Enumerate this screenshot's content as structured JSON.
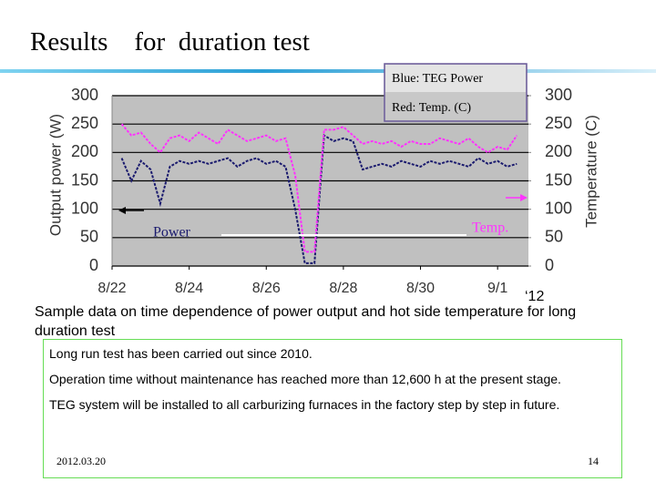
{
  "slide": {
    "title": "Results　for  duration test",
    "caption": "Sample data on time dependence of power output and hot side temperature for long duration test",
    "notes": [
      "Long run test has been carried out since 2010.",
      "Operation time without maintenance has  reached more than 12,600 h at the present stage.",
      "TEG system will be installed to all carburizing furnaces in the factory step by step in future."
    ],
    "date": "2012.03.20",
    "page": "14"
  },
  "chart_data": {
    "type": "line",
    "ylabel": "Output power (W)",
    "y2label": "Temperature (C)",
    "xlabel": "‘12",
    "legend_box": [
      "Blue: TEG Power",
      "Red: Temp. (C)"
    ],
    "xlim": [
      0,
      10.8
    ],
    "xticks": [
      {
        "value": 0,
        "label": "8/22"
      },
      {
        "value": 2,
        "label": "8/24"
      },
      {
        "value": 4,
        "label": "8/26"
      },
      {
        "value": 6,
        "label": "8/28"
      },
      {
        "value": 8,
        "label": "8/30"
      },
      {
        "value": 10,
        "label": "9/1"
      }
    ],
    "ylim": [
      0,
      300
    ],
    "yticks": [
      0,
      50,
      100,
      150,
      200,
      250,
      300
    ],
    "y2lim": [
      0,
      300
    ],
    "y2ticks": [
      0,
      50,
      100,
      150,
      200,
      250,
      300
    ],
    "grid": true,
    "background": "#c0c0c0",
    "x": [
      0.25,
      0.5,
      0.75,
      1,
      1.25,
      1.5,
      1.75,
      2,
      2.25,
      2.5,
      2.75,
      3,
      3.25,
      3.5,
      3.75,
      4,
      4.25,
      4.5,
      4.75,
      5,
      5.25,
      5.5,
      5.75,
      6,
      6.25,
      6.5,
      6.75,
      7,
      7.25,
      7.5,
      7.75,
      8,
      8.25,
      8.5,
      8.75,
      9,
      9.25,
      9.5,
      9.75,
      10,
      10.25,
      10.5
    ],
    "series": [
      {
        "name": "Power",
        "color": "#1a1a6e",
        "values": [
          190,
          150,
          185,
          170,
          110,
          175,
          185,
          180,
          185,
          180,
          185,
          190,
          175,
          185,
          190,
          180,
          185,
          175,
          100,
          5,
          5,
          230,
          220,
          225,
          220,
          170,
          175,
          180,
          175,
          185,
          180,
          175,
          185,
          180,
          185,
          180,
          175,
          190,
          180,
          185,
          175,
          180
        ]
      },
      {
        "name": "Temp.",
        "color": "#ff33ff",
        "axis": "y2",
        "values": [
          250,
          230,
          235,
          215,
          200,
          225,
          230,
          220,
          235,
          225,
          215,
          240,
          230,
          220,
          225,
          230,
          220,
          225,
          160,
          25,
          25,
          240,
          240,
          245,
          230,
          215,
          220,
          215,
          220,
          210,
          220,
          215,
          215,
          225,
          220,
          215,
          225,
          210,
          200,
          210,
          205,
          230
        ]
      }
    ]
  }
}
